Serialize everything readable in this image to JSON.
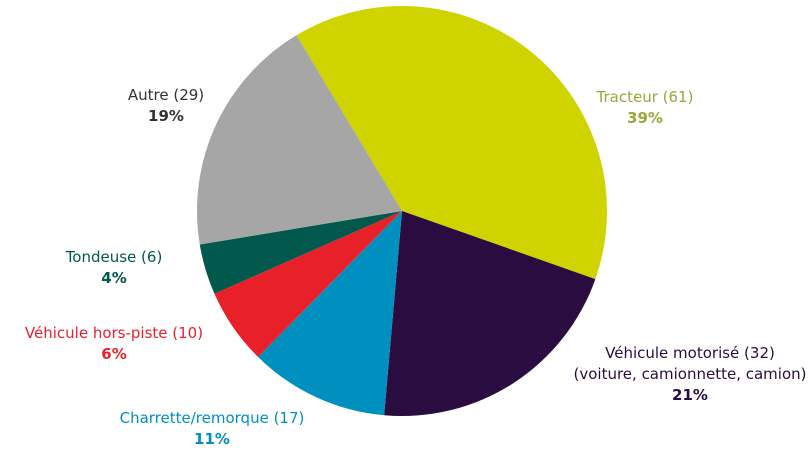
{
  "chart_data": {
    "type": "pie",
    "categories": [
      "Tracteur (61)",
      "Véhicule motorisé (32)\n(voiture, camionnette, camion)",
      "Charrette/remorque (17)",
      "Véhicule hors-piste (10)",
      "Tondeuse (6)",
      "Autre (29)"
    ],
    "values": [
      39,
      21,
      11,
      6,
      4,
      19
    ],
    "value_labels": [
      "39%",
      "21%",
      "11%",
      "6%",
      "4%",
      "19%"
    ],
    "colors": [
      "#cfd400",
      "#2a0c41",
      "#0090c0",
      "#e8202a",
      "#00594c",
      "#a6a6a6"
    ],
    "label_colors": [
      "#9aa83a",
      "#2a0c41",
      "#0090c0",
      "#e8202a",
      "#00594c",
      "#333333"
    ]
  }
}
